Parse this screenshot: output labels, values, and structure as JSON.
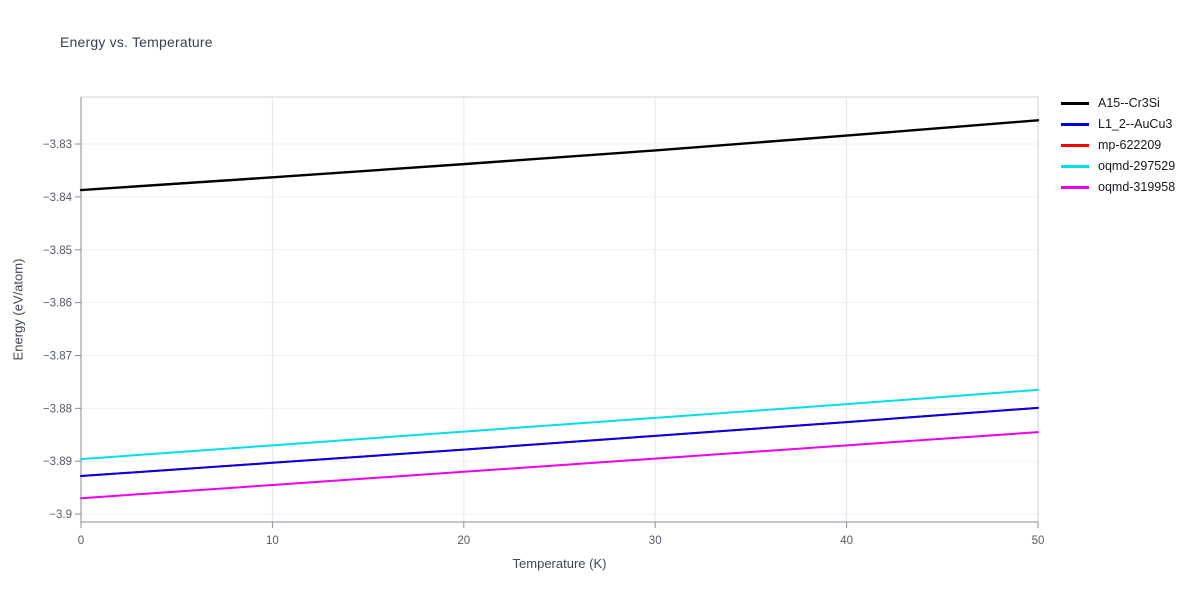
{
  "chart_data": {
    "type": "line",
    "title": "Energy vs. Temperature",
    "xlabel": "Temperature (K)",
    "ylabel": "Energy (eV/atom)",
    "xlim": [
      0,
      50
    ],
    "ylim": [
      -3.9015,
      -3.8211
    ],
    "x_ticks": [
      0,
      10,
      20,
      30,
      40,
      50
    ],
    "y_ticks": [
      -3.9,
      -3.89,
      -3.88,
      -3.87,
      -3.86,
      -3.85,
      -3.84,
      -3.83
    ],
    "y_tick_labels": [
      "−3.9",
      "−3.89",
      "−3.88",
      "−3.87",
      "−3.86",
      "−3.85",
      "−3.84",
      "−3.83"
    ],
    "grid": true,
    "legend_position": "top-right-outside",
    "x": [
      0,
      10,
      20,
      30,
      40,
      50
    ],
    "series": [
      {
        "name": "A15--Cr3Si",
        "color": "#000000",
        "width": 2.4,
        "values": [
          -3.8387,
          -3.8363,
          -3.8338,
          -3.8312,
          -3.8284,
          -3.8255
        ]
      },
      {
        "name": "L1_2--AuCu3",
        "color": "#0000e6",
        "width": 2,
        "values": [
          -3.8928,
          -3.8903,
          -3.8878,
          -3.8852,
          -3.8826,
          -3.8799
        ]
      },
      {
        "name": "mp-622209",
        "color": "#ff0000",
        "width": 2,
        "values": [
          -3.8928,
          -3.8903,
          -3.8878,
          -3.8852,
          -3.8826,
          -3.8799
        ]
      },
      {
        "name": "oqmd-297529",
        "color": "#00e0e8",
        "width": 2,
        "values": [
          -3.8896,
          -3.887,
          -3.8844,
          -3.8818,
          -3.8792,
          -3.8765
        ]
      },
      {
        "name": "oqmd-319958",
        "color": "#ee00ee",
        "width": 2,
        "values": [
          -3.897,
          -3.8945,
          -3.892,
          -3.8895,
          -3.887,
          -3.8845
        ]
      }
    ],
    "legend_order": [
      "A15--Cr3Si",
      "L1_2--AuCu3",
      "mp-622209",
      "oqmd-297529",
      "oqmd-319958"
    ],
    "draw_order": [
      "A15--Cr3Si",
      "mp-622209",
      "L1_2--AuCu3",
      "oqmd-297529",
      "oqmd-319958"
    ]
  }
}
